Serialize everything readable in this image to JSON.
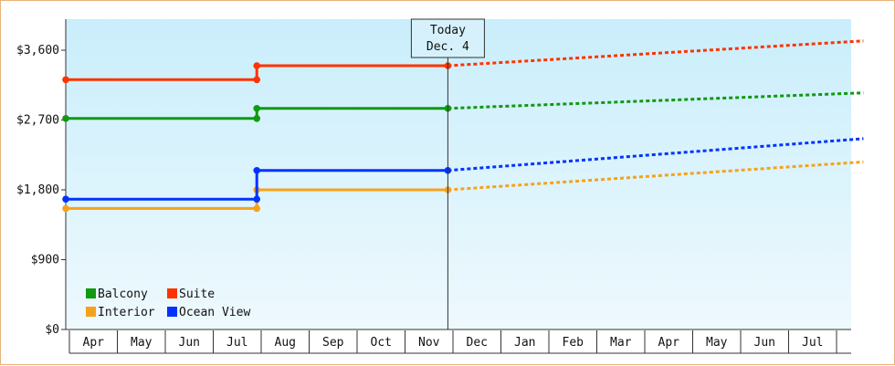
{
  "chart_data": {
    "type": "line",
    "title": "",
    "xlabel": "",
    "ylabel": "",
    "x_months": [
      "Apr",
      "May",
      "Jun",
      "Jul",
      "Aug",
      "Sep",
      "Oct",
      "Nov",
      "Dec",
      "Jan",
      "Feb",
      "Mar",
      "Apr",
      "May",
      "Jun",
      "Jul"
    ],
    "ylim": [
      0,
      4000
    ],
    "y_ticks": [
      {
        "value": 0,
        "label": "$0"
      },
      {
        "value": 900,
        "label": "$900"
      },
      {
        "value": 1800,
        "label": "$1,800"
      },
      {
        "value": 2700,
        "label": "$2,700"
      },
      {
        "value": 3600,
        "label": "$3,600"
      }
    ],
    "today": {
      "line1": "Today",
      "line2": "Dec. 4",
      "x": 8.0
    },
    "legend_placement": "bottom-left",
    "grid": false,
    "series": [
      {
        "name": "Balcony",
        "color": "#119911",
        "history": [
          [
            0,
            2720
          ],
          [
            4.0,
            2720
          ],
          [
            4.0,
            2850
          ],
          [
            8.0,
            2850
          ]
        ],
        "forecast": [
          [
            8.0,
            2850
          ],
          [
            16.7,
            3050
          ]
        ]
      },
      {
        "name": "Suite",
        "color": "#ff3300",
        "history": [
          [
            0,
            3220
          ],
          [
            4.0,
            3220
          ],
          [
            4.0,
            3400
          ],
          [
            8.0,
            3400
          ]
        ],
        "forecast": [
          [
            8.0,
            3400
          ],
          [
            16.7,
            3720
          ]
        ]
      },
      {
        "name": "Interior",
        "color": "#f5a21b",
        "history": [
          [
            0,
            1560
          ],
          [
            4.0,
            1560
          ],
          [
            4.0,
            1800
          ],
          [
            8.0,
            1800
          ]
        ],
        "forecast": [
          [
            8.0,
            1800
          ],
          [
            16.7,
            2160
          ]
        ]
      },
      {
        "name": "Ocean View",
        "color": "#0033ff",
        "history": [
          [
            0,
            1680
          ],
          [
            4.0,
            1680
          ],
          [
            4.0,
            2050
          ],
          [
            8.0,
            2050
          ]
        ],
        "forecast": [
          [
            8.0,
            2050
          ],
          [
            16.7,
            2460
          ]
        ]
      }
    ]
  }
}
